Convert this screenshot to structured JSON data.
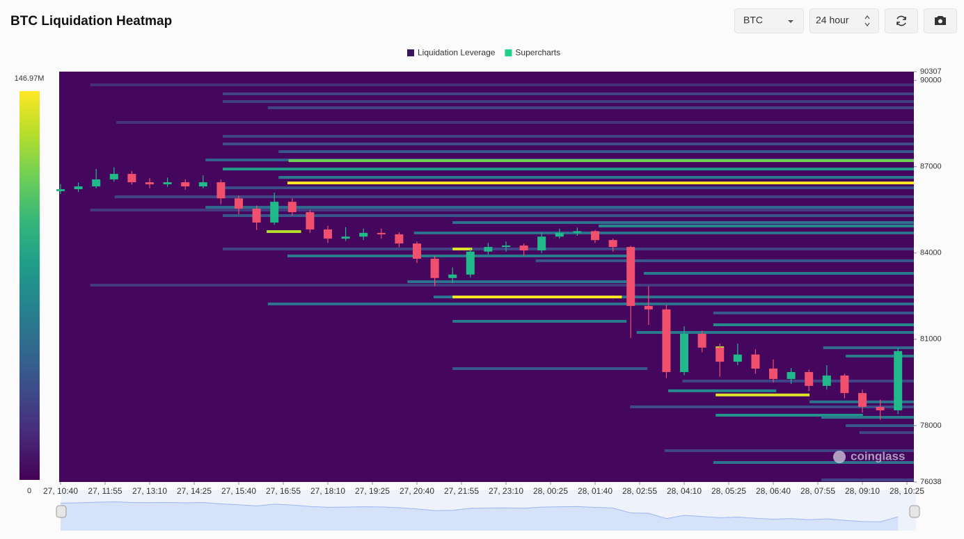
{
  "ui": {
    "coin": "BTC",
    "range": "24 hour"
  },
  "chart_data": {
    "type": "heatmap",
    "title": "BTC Liquidation Heatmap",
    "watermark": "coinglass",
    "ylim": [
      76038,
      90307
    ],
    "yticks": [
      90307,
      90000,
      87000,
      84000,
      81000,
      78000,
      76038
    ],
    "xlim": [
      0,
      1440
    ],
    "xticks": [
      {
        "value": 0,
        "label": "27, 10:40"
      },
      {
        "value": 75,
        "label": "27, 11:55"
      },
      {
        "value": 150,
        "label": "27, 13:10"
      },
      {
        "value": 225,
        "label": "27, 14:25"
      },
      {
        "value": 300,
        "label": "27, 15:40"
      },
      {
        "value": 375,
        "label": "27, 16:55"
      },
      {
        "value": 450,
        "label": "27, 18:10"
      },
      {
        "value": 525,
        "label": "27, 19:25"
      },
      {
        "value": 600,
        "label": "27, 20:40"
      },
      {
        "value": 675,
        "label": "27, 21:55"
      },
      {
        "value": 750,
        "label": "27, 23:10"
      },
      {
        "value": 825,
        "label": "28, 00:25"
      },
      {
        "value": 900,
        "label": "28, 01:40"
      },
      {
        "value": 975,
        "label": "28, 02:55"
      },
      {
        "value": 1050,
        "label": "28, 04:10"
      },
      {
        "value": 1125,
        "label": "28, 05:25"
      },
      {
        "value": 1200,
        "label": "28, 06:40"
      },
      {
        "value": 1275,
        "label": "28, 07:55"
      },
      {
        "value": 1350,
        "label": "28, 09:10"
      },
      {
        "value": 1425,
        "label": "28, 10:25"
      }
    ],
    "zlim": [
      0,
      146.97
    ],
    "zticks": [
      0,
      {
        "value": 146.97,
        "label": "146.97M"
      }
    ],
    "background": "#45075e",
    "series": [
      {
        "name": "Liquidation Leverage",
        "color": "#3b1460",
        "bands": [
          {
            "price": 89847,
            "start": 50,
            "end": 1440,
            "value": 20
          },
          {
            "price": 89533,
            "start": 273,
            "end": 1440,
            "value": 30
          },
          {
            "price": 89267,
            "start": 273,
            "end": 1440,
            "value": 28
          },
          {
            "price": 89050,
            "start": 349,
            "end": 1440,
            "value": 30
          },
          {
            "price": 88541,
            "start": 94,
            "end": 1440,
            "value": 22
          },
          {
            "price": 88058,
            "start": 273,
            "end": 1440,
            "value": 30
          },
          {
            "price": 87792,
            "start": 273,
            "end": 1440,
            "value": 35
          },
          {
            "price": 87526,
            "start": 367,
            "end": 1440,
            "value": 40
          },
          {
            "price": 87236,
            "start": 244,
            "end": 1440,
            "value": 45
          },
          {
            "price": 87212,
            "start": 384,
            "end": 1440,
            "value": 115
          },
          {
            "price": 86920,
            "start": 273,
            "end": 1440,
            "value": 80
          },
          {
            "price": 86630,
            "start": 367,
            "end": 1440,
            "value": 60
          },
          {
            "price": 86437,
            "start": 382,
            "end": 1440,
            "value": 146.97
          },
          {
            "price": 86268,
            "start": 273,
            "end": 1440,
            "value": 35
          },
          {
            "price": 85954,
            "start": 91,
            "end": 1440,
            "value": 30
          },
          {
            "price": 85590,
            "start": 244,
            "end": 1440,
            "value": 50
          },
          {
            "price": 85493,
            "start": 50,
            "end": 1440,
            "value": 25
          },
          {
            "price": 85300,
            "start": 273,
            "end": 1440,
            "value": 40
          },
          {
            "price": 85060,
            "start": 660,
            "end": 1440,
            "value": 55
          },
          {
            "price": 84940,
            "start": 906,
            "end": 1440,
            "value": 70
          },
          {
            "price": 84697,
            "start": 595,
            "end": 1440,
            "value": 55
          },
          {
            "price": 84745,
            "start": 347,
            "end": 405,
            "value": 130
          },
          {
            "price": 84140,
            "start": 273,
            "end": 1440,
            "value": 30
          },
          {
            "price": 84140,
            "start": 660,
            "end": 693,
            "value": 140
          },
          {
            "price": 83898,
            "start": 382,
            "end": 953,
            "value": 60
          },
          {
            "price": 83730,
            "start": 800,
            "end": 1440,
            "value": 40
          },
          {
            "price": 83293,
            "start": 982,
            "end": 1440,
            "value": 60
          },
          {
            "price": 83003,
            "start": 584,
            "end": 953,
            "value": 55
          },
          {
            "price": 82882,
            "start": 50,
            "end": 1440,
            "value": 25
          },
          {
            "price": 82471,
            "start": 628,
            "end": 1440,
            "value": 55
          },
          {
            "price": 82471,
            "start": 660,
            "end": 945,
            "value": 146.97
          },
          {
            "price": 82229,
            "start": 349,
            "end": 1440,
            "value": 55
          },
          {
            "price": 81915,
            "start": 1099,
            "end": 1440,
            "value": 40
          },
          {
            "price": 81625,
            "start": 660,
            "end": 953,
            "value": 60
          },
          {
            "price": 81504,
            "start": 1099,
            "end": 1440,
            "value": 70
          },
          {
            "price": 81238,
            "start": 970,
            "end": 1440,
            "value": 60
          },
          {
            "price": 80705,
            "start": 1284,
            "end": 1440,
            "value": 50
          },
          {
            "price": 80705,
            "start": 1103,
            "end": 1117,
            "value": 130
          },
          {
            "price": 80416,
            "start": 1322,
            "end": 1440,
            "value": 60
          },
          {
            "price": 79980,
            "start": 660,
            "end": 988,
            "value": 40
          },
          {
            "price": 79548,
            "start": 1047,
            "end": 1440,
            "value": 30
          },
          {
            "price": 79209,
            "start": 1023,
            "end": 1205,
            "value": 70
          },
          {
            "price": 79064,
            "start": 1103,
            "end": 1261,
            "value": 140
          },
          {
            "price": 78823,
            "start": 1261,
            "end": 1440,
            "value": 55
          },
          {
            "price": 78650,
            "start": 959,
            "end": 1440,
            "value": 35
          },
          {
            "price": 78360,
            "start": 1103,
            "end": 1351,
            "value": 75
          },
          {
            "price": 78287,
            "start": 1281,
            "end": 1440,
            "value": 60
          },
          {
            "price": 77997,
            "start": 1322,
            "end": 1440,
            "value": 40
          },
          {
            "price": 77755,
            "start": 1345,
            "end": 1440,
            "value": 30
          },
          {
            "price": 77127,
            "start": 1017,
            "end": 1440,
            "value": 30
          },
          {
            "price": 76716,
            "start": 1099,
            "end": 1440,
            "value": 55
          },
          {
            "price": 76111,
            "start": 1281,
            "end": 1440,
            "value": 30
          }
        ]
      },
      {
        "name": "Supercharts",
        "color": "#1fcf8a",
        "type": "candlestick",
        "up_color": "#22b98a",
        "down_color": "#f0506e",
        "x": [
          0,
          30,
          60,
          90,
          120,
          150,
          180,
          210,
          240,
          270,
          300,
          330,
          360,
          390,
          420,
          450,
          480,
          510,
          540,
          570,
          600,
          630,
          660,
          690,
          720,
          750,
          780,
          810,
          840,
          870,
          900,
          930,
          960,
          990,
          1020,
          1050,
          1080,
          1110,
          1140,
          1170,
          1200,
          1230,
          1260,
          1290,
          1320,
          1350,
          1380,
          1410
        ],
        "open": [
          86150,
          86220,
          86316,
          86560,
          86750,
          86460,
          86390,
          86460,
          86316,
          86460,
          85900,
          85540,
          85060,
          85780,
          85420,
          84820,
          84500,
          84570,
          84700,
          84650,
          84330,
          83800,
          83130,
          83250,
          84050,
          84210,
          84260,
          84090,
          84570,
          84700,
          84760,
          84450,
          84210,
          82160,
          82040,
          79860,
          81190,
          80710,
          80220,
          80470,
          79980,
          79620,
          79860,
          79380,
          79740,
          79130,
          78650,
          78530
        ],
        "high": [
          86400,
          86450,
          86920,
          86980,
          86850,
          86600,
          86620,
          86560,
          86700,
          86550,
          86000,
          85650,
          86100,
          85900,
          85500,
          84950,
          84900,
          84850,
          84850,
          84720,
          84400,
          83900,
          83500,
          84150,
          84350,
          84400,
          84330,
          84700,
          84850,
          84880,
          84800,
          84500,
          84250,
          82850,
          82200,
          81450,
          81300,
          80850,
          80850,
          80650,
          80300,
          80000,
          79950,
          80100,
          79800,
          79250,
          78900,
          80700
        ],
        "low": [
          86050,
          86120,
          86250,
          86480,
          86380,
          86250,
          86300,
          86200,
          86250,
          85700,
          85350,
          84800,
          84980,
          85300,
          84700,
          84350,
          84420,
          84450,
          84500,
          84200,
          83650,
          82850,
          82950,
          83150,
          83950,
          84050,
          83900,
          84000,
          84500,
          84600,
          84350,
          84050,
          81050,
          81500,
          79650,
          79750,
          80550,
          79700,
          80100,
          79800,
          79500,
          79450,
          79200,
          79250,
          78950,
          78450,
          78200,
          78400
        ],
        "close": [
          86220,
          86316,
          86560,
          86750,
          86460,
          86390,
          86460,
          86316,
          86460,
          85900,
          85540,
          85060,
          85780,
          85420,
          84820,
          84500,
          84570,
          84700,
          84650,
          84330,
          83800,
          83130,
          83250,
          84050,
          84210,
          84260,
          84090,
          84570,
          84700,
          84760,
          84450,
          84210,
          82160,
          82040,
          79860,
          81190,
          80710,
          80220,
          80470,
          79980,
          79620,
          79860,
          79380,
          79740,
          79130,
          78650,
          78530,
          80590
        ]
      }
    ]
  }
}
